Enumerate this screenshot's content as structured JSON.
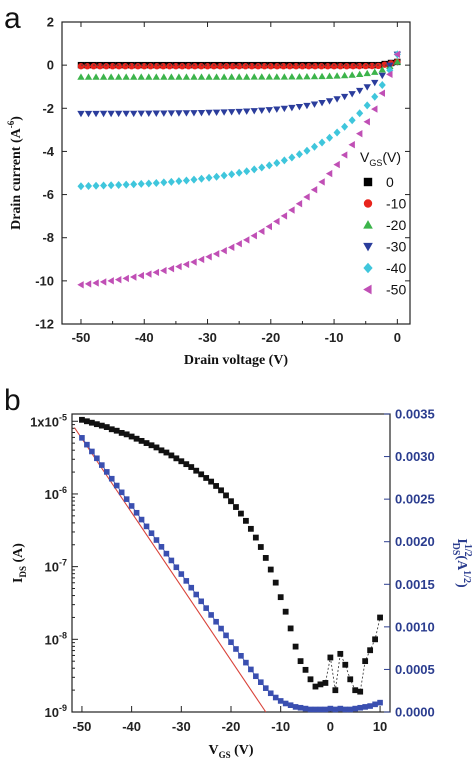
{
  "chart_data": [
    {
      "type": "scatter",
      "panel_label": "a",
      "xlabel": "Drain voltage (V)",
      "ylabel": "Drain current (A",
      "ylabel_sup": "-6",
      "ylabel_end": ")",
      "xlim": [
        -53,
        2
      ],
      "ylim": [
        -12,
        2
      ],
      "xticks": [
        -50,
        -40,
        -30,
        -20,
        -10,
        0
      ],
      "yticks": [
        -12,
        -10,
        -8,
        -6,
        -4,
        -2,
        0,
        2
      ],
      "legend_title": "V",
      "legend_title_sub": "GS",
      "legend_title_end": "(V)",
      "legend_position": "right-middle",
      "series": [
        {
          "name": "0",
          "color": "#000000",
          "marker": "square",
          "Isat": 0.0,
          "k": 2.0
        },
        {
          "name": "-10",
          "color": "#e8241c",
          "marker": "circle",
          "Isat": -0.05,
          "k": 2.5
        },
        {
          "name": "-20",
          "color": "#3cb44b",
          "marker": "triangle-up",
          "Isat": -0.55,
          "k": 4.0
        },
        {
          "name": "-30",
          "color": "#2b3d9c",
          "marker": "triangle-down",
          "Isat": -2.25,
          "k": 8.0
        },
        {
          "name": "-40",
          "color": "#3fc6dc",
          "marker": "diamond",
          "Isat": -5.7,
          "k": 12.0
        },
        {
          "name": "-50",
          "color": "#c04fb5",
          "marker": "triangle-left",
          "Isat": -10.75,
          "k": 17.0
        }
      ],
      "x_range": [
        -50,
        0
      ],
      "n_points": 51
    },
    {
      "type": "scatter",
      "panel_label": "b",
      "xlabel": "V",
      "xlabel_sub": "GS",
      "xlabel_end": " (V)",
      "ylabel_left": "I",
      "ylabel_left_sub": "DS",
      "ylabel_left_end": " (A)",
      "ylabel_right": "I",
      "ylabel_right_sup": "1/2",
      "ylabel_right_sub": "DS",
      "ylabel_right_end": "(A",
      "ylabel_right_sup2": "1/2",
      "ylabel_right_close": ")",
      "xlim": [
        -52,
        12
      ],
      "ylim_left_log": [
        -9,
        -4.9
      ],
      "ylim_right": [
        0,
        0.0035
      ],
      "xticks": [
        -50,
        -40,
        -30,
        -20,
        -10,
        0,
        10
      ],
      "yticks_left": [
        {
          "value": -5,
          "base": "1x10",
          "exp": "-5"
        },
        {
          "value": -6,
          "base": "10",
          "exp": "-6"
        },
        {
          "value": -7,
          "base": "10",
          "exp": "-7"
        },
        {
          "value": -8,
          "base": "10",
          "exp": "-8"
        },
        {
          "value": -9,
          "base": "10",
          "exp": "-9"
        }
      ],
      "yticks_right": [
        "0.0000",
        "0.0005",
        "0.0010",
        "0.0015",
        "0.0020",
        "0.0025",
        "0.0030",
        "0.0035"
      ],
      "yticks_right_values": [
        0,
        0.0005,
        0.001,
        0.0015,
        0.002,
        0.0025,
        0.003,
        0.0035
      ],
      "ids_log": [
        [
          -50,
          -4.98
        ],
        [
          -49,
          -5.0
        ],
        [
          -48,
          -5.02
        ],
        [
          -47,
          -5.04
        ],
        [
          -46,
          -5.06
        ],
        [
          -45,
          -5.08
        ],
        [
          -44,
          -5.11
        ],
        [
          -43,
          -5.13
        ],
        [
          -42,
          -5.16
        ],
        [
          -41,
          -5.18
        ],
        [
          -40,
          -5.21
        ],
        [
          -39,
          -5.24
        ],
        [
          -38,
          -5.27
        ],
        [
          -37,
          -5.3
        ],
        [
          -36,
          -5.33
        ],
        [
          -35,
          -5.36
        ],
        [
          -34,
          -5.4
        ],
        [
          -33,
          -5.43
        ],
        [
          -32,
          -5.47
        ],
        [
          -31,
          -5.51
        ],
        [
          -30,
          -5.55
        ],
        [
          -29,
          -5.59
        ],
        [
          -28,
          -5.63
        ],
        [
          -27,
          -5.68
        ],
        [
          -26,
          -5.73
        ],
        [
          -25,
          -5.78
        ],
        [
          -24,
          -5.83
        ],
        [
          -23,
          -5.89
        ],
        [
          -22,
          -5.95
        ],
        [
          -21,
          -6.02
        ],
        [
          -20,
          -6.1
        ],
        [
          -19,
          -6.18
        ],
        [
          -18,
          -6.27
        ],
        [
          -17,
          -6.37
        ],
        [
          -16,
          -6.48
        ],
        [
          -15,
          -6.6
        ],
        [
          -14,
          -6.73
        ],
        [
          -13,
          -6.88
        ],
        [
          -12,
          -7.04
        ],
        [
          -11,
          -7.22
        ],
        [
          -10,
          -7.42
        ],
        [
          -9,
          -7.62
        ],
        [
          -8,
          -7.85
        ],
        [
          -7,
          -8.1
        ],
        [
          -6,
          -8.3
        ],
        [
          -5,
          -8.42
        ],
        [
          -4,
          -8.55
        ],
        [
          -3,
          -8.65
        ],
        [
          -2,
          -8.62
        ],
        [
          -1,
          -8.6
        ],
        [
          0,
          -8.25
        ],
        [
          1,
          -8.7
        ],
        [
          2,
          -8.2
        ],
        [
          3,
          -8.35
        ],
        [
          4,
          -8.55
        ],
        [
          5,
          -8.7
        ],
        [
          6,
          -8.72
        ],
        [
          7,
          -8.3
        ],
        [
          8,
          -8.15
        ],
        [
          9,
          -8.0
        ],
        [
          10,
          -7.7
        ]
      ],
      "sqrt_ids": [
        [
          -50,
          0.00322
        ],
        [
          -49,
          0.00314
        ],
        [
          -48,
          0.00306
        ],
        [
          -47,
          0.00298
        ],
        [
          -46,
          0.0029
        ],
        [
          -45,
          0.00282
        ],
        [
          -44,
          0.00274
        ],
        [
          -43,
          0.00266
        ],
        [
          -42,
          0.00258
        ],
        [
          -41,
          0.0025
        ],
        [
          -40,
          0.00242
        ],
        [
          -39,
          0.00234
        ],
        [
          -38,
          0.00226
        ],
        [
          -37,
          0.00218
        ],
        [
          -36,
          0.0021
        ],
        [
          -35,
          0.00202
        ],
        [
          -34,
          0.00194
        ],
        [
          -33,
          0.00186
        ],
        [
          -32,
          0.00178
        ],
        [
          -31,
          0.0017
        ],
        [
          -30,
          0.00162
        ],
        [
          -29,
          0.00154
        ],
        [
          -28,
          0.00146
        ],
        [
          -27,
          0.00138
        ],
        [
          -26,
          0.0013
        ],
        [
          -25,
          0.00122
        ],
        [
          -24,
          0.00114
        ],
        [
          -23,
          0.00106
        ],
        [
          -22,
          0.00098
        ],
        [
          -21,
          0.0009
        ],
        [
          -20,
          0.00082
        ],
        [
          -19,
          0.00074
        ],
        [
          -18,
          0.00066
        ],
        [
          -17,
          0.00058
        ],
        [
          -16,
          0.0005
        ],
        [
          -15,
          0.00042
        ],
        [
          -14,
          0.00035
        ],
        [
          -13,
          0.00028
        ],
        [
          -12,
          0.00022
        ],
        [
          -11,
          0.00017
        ],
        [
          -10,
          0.00013
        ],
        [
          -9,
          0.0001
        ],
        [
          -8,
          8e-05
        ],
        [
          -7,
          6e-05
        ],
        [
          -6,
          5e-05
        ],
        [
          -5,
          4e-05
        ],
        [
          -4,
          3e-05
        ],
        [
          -3,
          3e-05
        ],
        [
          -2,
          3e-05
        ],
        [
          -1,
          3e-05
        ],
        [
          0,
          4e-05
        ],
        [
          1,
          3e-05
        ],
        [
          2,
          4e-05
        ],
        [
          3,
          3e-05
        ],
        [
          4,
          3e-05
        ],
        [
          5,
          4e-05
        ],
        [
          6,
          5e-05
        ],
        [
          7,
          6e-05
        ],
        [
          8,
          7e-05
        ],
        [
          9,
          9e-05
        ],
        [
          10,
          0.00011
        ]
      ],
      "fit_line": [
        [
          -51.5,
          0.00334
        ],
        [
          -13,
          0.0
        ]
      ],
      "colors": {
        "ids": "#111111",
        "sqrt": "#3a4fb0",
        "fit": "#d9433a",
        "right_axis": "#2b3d8f"
      }
    }
  ]
}
